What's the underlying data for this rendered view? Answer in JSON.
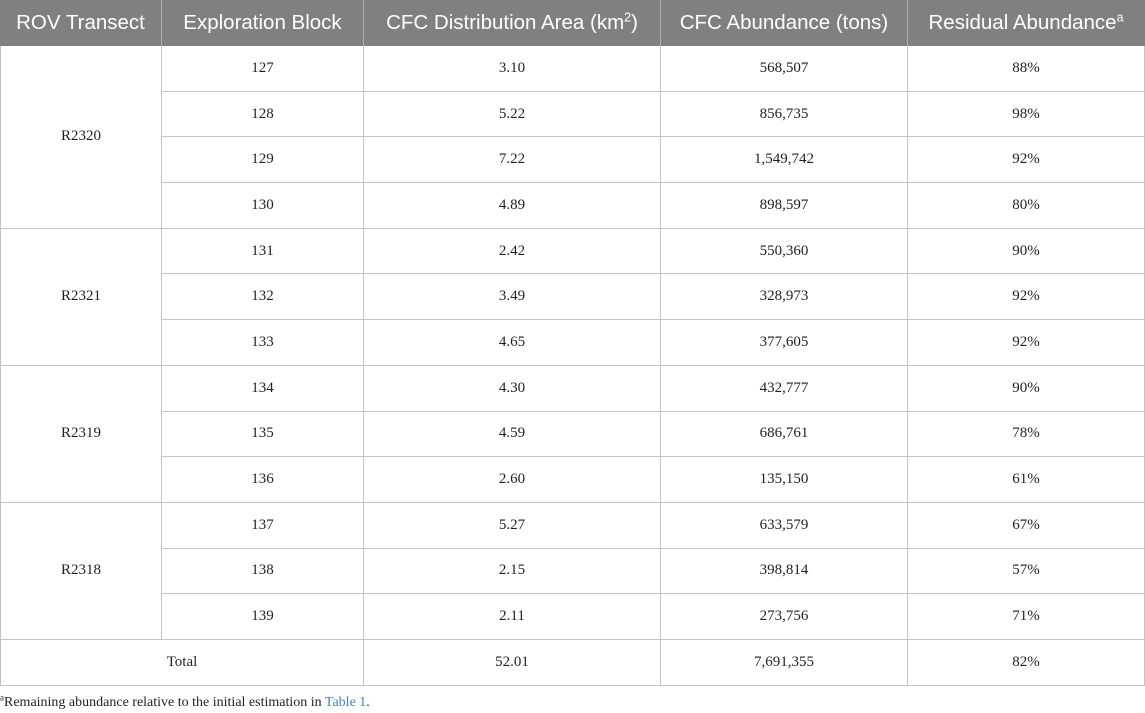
{
  "theme": {
    "header_background": "#808080",
    "link_color": "#3a86c2"
  },
  "table": {
    "headers": [
      {
        "text": "ROV Transect"
      },
      {
        "text": "Exploration Block"
      },
      {
        "text": "CFC Distribution Area (km",
        "sup": "2",
        "suffix": ")"
      },
      {
        "text": "CFC Abundance (tons)"
      },
      {
        "text": "Residual Abundance",
        "sup": "a"
      }
    ],
    "groups": [
      {
        "transect": "R2320",
        "rows": [
          {
            "block": "127",
            "area": "3.10",
            "abundance": "568,507",
            "residual": "88%"
          },
          {
            "block": "128",
            "area": "5.22",
            "abundance": "856,735",
            "residual": "98%"
          },
          {
            "block": "129",
            "area": "7.22",
            "abundance": "1,549,742",
            "residual": "92%"
          },
          {
            "block": "130",
            "area": "4.89",
            "abundance": "898,597",
            "residual": "80%"
          }
        ]
      },
      {
        "transect": "R2321",
        "rows": [
          {
            "block": "131",
            "area": "2.42",
            "abundance": "550,360",
            "residual": "90%"
          },
          {
            "block": "132",
            "area": "3.49",
            "abundance": "328,973",
            "residual": "92%"
          },
          {
            "block": "133",
            "area": "4.65",
            "abundance": "377,605",
            "residual": "92%"
          }
        ]
      },
      {
        "transect": "R2319",
        "rows": [
          {
            "block": "134",
            "area": "4.30",
            "abundance": "432,777",
            "residual": "90%"
          },
          {
            "block": "135",
            "area": "4.59",
            "abundance": "686,761",
            "residual": "78%"
          },
          {
            "block": "136",
            "area": "2.60",
            "abundance": "135,150",
            "residual": "61%"
          }
        ]
      },
      {
        "transect": "R2318",
        "rows": [
          {
            "block": "137",
            "area": "5.27",
            "abundance": "633,579",
            "residual": "67%"
          },
          {
            "block": "138",
            "area": "2.15",
            "abundance": "398,814",
            "residual": "57%"
          },
          {
            "block": "139",
            "area": "2.11",
            "abundance": "273,756",
            "residual": "71%"
          }
        ]
      }
    ],
    "total": {
      "label": "Total",
      "area": "52.01",
      "abundance": "7,691,355",
      "residual": "82%"
    }
  },
  "footnote": {
    "marker": "a",
    "text": "Remaining abundance relative to the initial estimation in ",
    "link": "Table 1",
    "end": "."
  }
}
